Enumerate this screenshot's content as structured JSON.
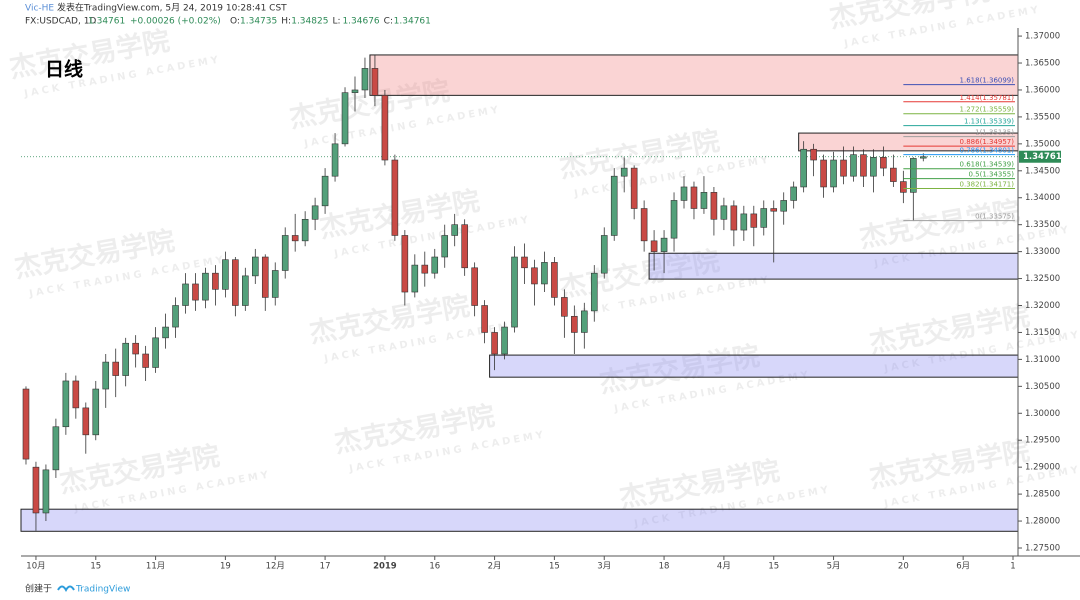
{
  "header": {
    "author": "Vic-HE",
    "published": "发表在TradingView.com, 5月 24, 2019 10:28:41 CST",
    "symbol": "FX:USDCAD, 1D",
    "price": "1.34761",
    "change": "+0.00026 (+0.02%)",
    "ohlc": [
      {
        "key": "O:",
        "value": "1.34735"
      },
      {
        "key": "H:",
        "value": "1.34825"
      },
      {
        "key": "L:",
        "value": "1.34676"
      },
      {
        "key": "C:",
        "value": "1.34761"
      }
    ]
  },
  "footer": {
    "created": "创建于",
    "brand": "TradingView"
  },
  "watermark": {
    "cn": "杰克交易学院",
    "en": "JACK TRADING ACADEMY"
  },
  "chart_data": {
    "type": "candlestick",
    "title": "日线",
    "up_color": "#53a07a",
    "down_color": "#c94a45",
    "ylim": [
      1.2737,
      1.3715
    ],
    "yticks": [
      {
        "value": 1.275,
        "label": "1.27500"
      },
      {
        "value": 1.28,
        "label": "1.28000"
      },
      {
        "value": 1.285,
        "label": "1.28500"
      },
      {
        "value": 1.29,
        "label": "1.29000"
      },
      {
        "value": 1.295,
        "label": "1.29500"
      },
      {
        "value": 1.3,
        "label": "1.30000"
      },
      {
        "value": 1.305,
        "label": "1.30500"
      },
      {
        "value": 1.31,
        "label": "1.31000"
      },
      {
        "value": 1.315,
        "label": "1.31500"
      },
      {
        "value": 1.32,
        "label": "1.32000"
      },
      {
        "value": 1.325,
        "label": "1.32500"
      },
      {
        "value": 1.33,
        "label": "1.33000"
      },
      {
        "value": 1.335,
        "label": "1.33500"
      },
      {
        "value": 1.34,
        "label": "1.34000"
      },
      {
        "value": 1.345,
        "label": "1.34500"
      },
      {
        "value": 1.35,
        "label": "1.35000"
      },
      {
        "value": 1.355,
        "label": "1.35500"
      },
      {
        "value": 1.36,
        "label": "1.36000"
      },
      {
        "value": 1.365,
        "label": "1.36500"
      },
      {
        "value": 1.37,
        "label": "1.37000"
      }
    ],
    "categories": [
      null,
      "10月",
      null,
      null,
      null,
      null,
      null,
      "15",
      null,
      null,
      null,
      null,
      null,
      "11月",
      null,
      null,
      null,
      null,
      null,
      null,
      "19",
      null,
      null,
      null,
      null,
      "12月",
      null,
      null,
      null,
      null,
      "17",
      null,
      null,
      null,
      null,
      null,
      "2019",
      null,
      null,
      null,
      null,
      "16",
      null,
      null,
      null,
      null,
      null,
      "2月",
      null,
      null,
      null,
      null,
      null,
      "15",
      null,
      null,
      null,
      null,
      "3月",
      null,
      null,
      null,
      null,
      null,
      "18",
      null,
      null,
      null,
      null,
      null,
      "4月",
      null,
      null,
      null,
      null,
      "15",
      null,
      null,
      null,
      null,
      null,
      "5月",
      null,
      null,
      null,
      null,
      null,
      null,
      "20",
      null,
      null,
      null,
      null,
      null,
      "6月",
      null,
      null,
      null,
      null,
      "1"
    ],
    "ohlc": [
      [
        1.3045,
        1.305,
        1.2905,
        1.2915
      ],
      [
        1.29,
        1.291,
        1.2782,
        1.2815
      ],
      [
        1.2815,
        1.2905,
        1.28,
        1.2895
      ],
      [
        1.2895,
        1.299,
        1.288,
        1.2975
      ],
      [
        1.2975,
        1.3075,
        1.296,
        1.306
      ],
      [
        1.306,
        1.307,
        1.299,
        1.301
      ],
      [
        1.301,
        1.302,
        1.2925,
        1.296
      ],
      [
        1.296,
        1.306,
        1.295,
        1.3045
      ],
      [
        1.3045,
        1.311,
        1.301,
        1.3095
      ],
      [
        1.3095,
        1.312,
        1.303,
        1.307
      ],
      [
        1.307,
        1.314,
        1.305,
        1.313
      ],
      [
        1.313,
        1.3145,
        1.3085,
        1.311
      ],
      [
        1.311,
        1.3125,
        1.306,
        1.3085
      ],
      [
        1.3085,
        1.316,
        1.3075,
        1.314
      ],
      [
        1.314,
        1.3185,
        1.312,
        1.316
      ],
      [
        1.316,
        1.3215,
        1.314,
        1.32
      ],
      [
        1.32,
        1.326,
        1.3185,
        1.324
      ],
      [
        1.324,
        1.326,
        1.319,
        1.321
      ],
      [
        1.321,
        1.327,
        1.3195,
        1.326
      ],
      [
        1.326,
        1.3275,
        1.32,
        1.323
      ],
      [
        1.323,
        1.33,
        1.3215,
        1.3285
      ],
      [
        1.3285,
        1.329,
        1.318,
        1.32
      ],
      [
        1.32,
        1.327,
        1.319,
        1.3255
      ],
      [
        1.3255,
        1.3305,
        1.324,
        1.329
      ],
      [
        1.329,
        1.3295,
        1.319,
        1.3215
      ],
      [
        1.3215,
        1.328,
        1.32,
        1.3265
      ],
      [
        1.3265,
        1.3345,
        1.325,
        1.333
      ],
      [
        1.333,
        1.337,
        1.33,
        1.332
      ],
      [
        1.332,
        1.3375,
        1.331,
        1.336
      ],
      [
        1.336,
        1.34,
        1.334,
        1.3385
      ],
      [
        1.3385,
        1.3455,
        1.337,
        1.344
      ],
      [
        1.344,
        1.352,
        1.343,
        1.35
      ],
      [
        1.35,
        1.3605,
        1.3495,
        1.3595
      ],
      [
        1.3595,
        1.3625,
        1.356,
        1.36
      ],
      [
        1.36,
        1.366,
        1.3585,
        1.364
      ],
      [
        1.364,
        1.3665,
        1.357,
        1.359
      ],
      [
        1.359,
        1.36,
        1.346,
        1.347
      ],
      [
        1.347,
        1.348,
        1.332,
        1.333
      ],
      [
        1.333,
        1.334,
        1.32,
        1.3225
      ],
      [
        1.3225,
        1.3295,
        1.3215,
        1.3275
      ],
      [
        1.3275,
        1.33,
        1.3235,
        1.326
      ],
      [
        1.326,
        1.3305,
        1.325,
        1.329
      ],
      [
        1.329,
        1.335,
        1.327,
        1.333
      ],
      [
        1.333,
        1.337,
        1.331,
        1.335
      ],
      [
        1.335,
        1.336,
        1.3255,
        1.327
      ],
      [
        1.327,
        1.328,
        1.318,
        1.32
      ],
      [
        1.32,
        1.321,
        1.313,
        1.315
      ],
      [
        1.315,
        1.316,
        1.308,
        1.311
      ],
      [
        1.311,
        1.317,
        1.31,
        1.316
      ],
      [
        1.316,
        1.331,
        1.315,
        1.329
      ],
      [
        1.329,
        1.3315,
        1.324,
        1.327
      ],
      [
        1.327,
        1.3285,
        1.32,
        1.324
      ],
      [
        1.324,
        1.33,
        1.3225,
        1.328
      ],
      [
        1.328,
        1.329,
        1.32,
        1.3215
      ],
      [
        1.3215,
        1.323,
        1.314,
        1.318
      ],
      [
        1.318,
        1.32,
        1.311,
        1.315
      ],
      [
        1.315,
        1.3205,
        1.312,
        1.319
      ],
      [
        1.319,
        1.3275,
        1.317,
        1.326
      ],
      [
        1.326,
        1.3345,
        1.325,
        1.333
      ],
      [
        1.333,
        1.3455,
        1.332,
        1.344
      ],
      [
        1.344,
        1.3475,
        1.341,
        1.3455
      ],
      [
        1.3455,
        1.346,
        1.336,
        1.338
      ],
      [
        1.338,
        1.3395,
        1.33,
        1.332
      ],
      [
        1.332,
        1.334,
        1.3265,
        1.33
      ],
      [
        1.33,
        1.334,
        1.326,
        1.3325
      ],
      [
        1.3325,
        1.341,
        1.33,
        1.3395
      ],
      [
        1.3395,
        1.344,
        1.338,
        1.342
      ],
      [
        1.342,
        1.343,
        1.336,
        1.338
      ],
      [
        1.338,
        1.344,
        1.337,
        1.341
      ],
      [
        1.341,
        1.342,
        1.333,
        1.336
      ],
      [
        1.336,
        1.34,
        1.334,
        1.3385
      ],
      [
        1.3385,
        1.3395,
        1.331,
        1.334
      ],
      [
        1.334,
        1.3385,
        1.332,
        1.337
      ],
      [
        1.337,
        1.3385,
        1.331,
        1.3345
      ],
      [
        1.3345,
        1.3395,
        1.333,
        1.338
      ],
      [
        1.338,
        1.3395,
        1.328,
        1.3375
      ],
      [
        1.3375,
        1.341,
        1.335,
        1.3395
      ],
      [
        1.3395,
        1.343,
        1.338,
        1.342
      ],
      [
        1.342,
        1.3505,
        1.341,
        1.349
      ],
      [
        1.349,
        1.35,
        1.344,
        1.347
      ],
      [
        1.347,
        1.348,
        1.34,
        1.342
      ],
      [
        1.342,
        1.3485,
        1.341,
        1.347
      ],
      [
        1.347,
        1.3495,
        1.3425,
        1.344
      ],
      [
        1.344,
        1.3495,
        1.343,
        1.348
      ],
      [
        1.348,
        1.349,
        1.342,
        1.344
      ],
      [
        1.344,
        1.349,
        1.341,
        1.3475
      ],
      [
        1.3475,
        1.3495,
        1.344,
        1.3455
      ],
      [
        1.3455,
        1.348,
        1.342,
        1.343
      ],
      [
        1.343,
        1.345,
        1.339,
        1.341
      ],
      [
        1.341,
        1.3475,
        1.3357,
        1.3473
      ],
      [
        1.34735,
        1.34825,
        1.34676,
        1.34761
      ],
      null,
      null,
      null,
      null,
      null,
      null,
      null,
      null,
      null
    ],
    "zones": [
      {
        "low": 1.359,
        "high": 1.3665,
        "start": 35,
        "fill": "rgba(240,120,120,0.32)"
      },
      {
        "low": 1.3487,
        "high": 1.352,
        "start": 78,
        "fill": "rgba(240,120,120,0.32)"
      },
      {
        "low": 1.3249,
        "high": 1.3297,
        "start": 63,
        "fill": "rgba(140,140,240,0.35)"
      },
      {
        "low": 1.3067,
        "high": 1.3108,
        "start": 47,
        "fill": "rgba(140,140,240,0.35)"
      },
      {
        "low": 1.2781,
        "high": 1.2822,
        "start": 0,
        "fill": "rgba(140,140,240,0.35)"
      }
    ],
    "fib": {
      "start": 88,
      "levels": [
        {
          "value": 1.36099,
          "label": "1.618(1.36099)",
          "color": "#3f51b5"
        },
        {
          "value": 1.35781,
          "label": "1.414(1.35781)",
          "color": "#e53935"
        },
        {
          "value": 1.35559,
          "label": "1.272(1.35559)",
          "color": "#7cb342"
        },
        {
          "value": 1.35339,
          "label": "1.13(1.35339)",
          "color": "#26a69a"
        },
        {
          "value": 1.35135,
          "label": "1(1.35135)",
          "color": "#9e9e9e"
        },
        {
          "value": 1.34957,
          "label": "0.886(1.34957)",
          "color": "#e53935"
        },
        {
          "value": 1.34801,
          "label": "0.786(1.34801)",
          "color": "#2196f3"
        },
        {
          "value": 1.34539,
          "label": "0.618(1.34539)",
          "color": "#43a047"
        },
        {
          "value": 1.34355,
          "label": "0.5(1.34355)",
          "color": "#43a047"
        },
        {
          "value": 1.34171,
          "label": "0.382(1.34171)",
          "color": "#7cb342"
        },
        {
          "value": 1.33575,
          "label": "0(1.33575)",
          "color": "#9e9e9e"
        }
      ]
    },
    "last_price": {
      "value": 1.34761,
      "label": "1.34761"
    }
  }
}
